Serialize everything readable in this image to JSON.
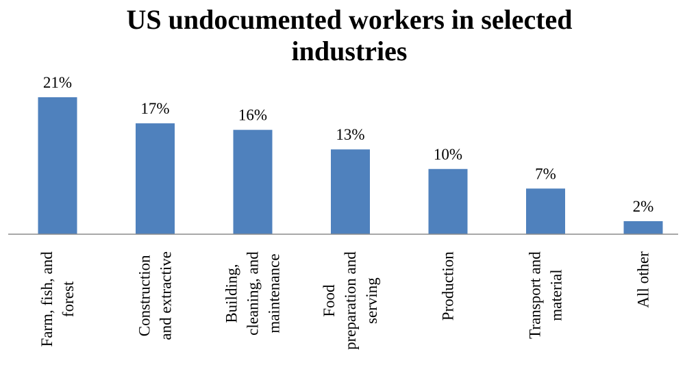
{
  "chart_data": {
    "type": "bar",
    "title_lines": [
      "US undocumented workers in selected",
      "industries"
    ],
    "categories": [
      [
        "Farm, fish, and",
        "forest"
      ],
      [
        "Construction",
        "and extractive"
      ],
      [
        "Building,",
        "cleaning, and",
        "maintenance"
      ],
      [
        "Food",
        "preparation and",
        "serving"
      ],
      [
        "Production"
      ],
      [
        "Transport and",
        "material"
      ],
      [
        "All other"
      ]
    ],
    "values": [
      21,
      17,
      16,
      13,
      10,
      7,
      2
    ],
    "value_labels": [
      "21%",
      "17%",
      "16%",
      "13%",
      "10%",
      "7%",
      "2%"
    ],
    "unit": "%",
    "bar_color": "#4F81BD",
    "grid": false,
    "legend": "none"
  }
}
